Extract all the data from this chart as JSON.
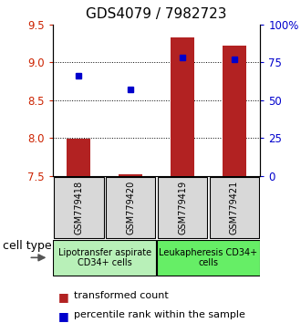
{
  "title": "GDS4079 / 7982723",
  "samples": [
    "GSM779418",
    "GSM779420",
    "GSM779419",
    "GSM779421"
  ],
  "transformed_counts": [
    7.99,
    7.52,
    9.33,
    9.22
  ],
  "percentile_ranks": [
    66,
    57,
    78,
    77
  ],
  "ymin": 7.5,
  "ymax": 9.5,
  "yticks": [
    7.5,
    8.0,
    8.5,
    9.0,
    9.5
  ],
  "right_yticks": [
    0,
    25,
    50,
    75,
    100
  ],
  "right_yticklabels": [
    "0",
    "25",
    "50",
    "75",
    "100%"
  ],
  "bar_color": "#b22222",
  "dot_color": "#0000cc",
  "bar_width": 0.45,
  "group_colors": [
    "#b8f0b8",
    "#66ee66"
  ],
  "group_labels": [
    "Lipotransfer aspirate\nCD34+ cells",
    "Leukapheresis CD34+\ncells"
  ],
  "cell_type_label": "cell type",
  "legend_bar_label": "transformed count",
  "legend_dot_label": "percentile rank within the sample",
  "left_tick_color": "#cc2200",
  "right_tick_color": "#0000cc",
  "grid_color": "#000000",
  "sample_box_color": "#d8d8d8",
  "title_fontsize": 11,
  "tick_fontsize": 8.5,
  "sample_fontsize": 7,
  "group_fontsize": 7,
  "legend_fontsize": 8
}
